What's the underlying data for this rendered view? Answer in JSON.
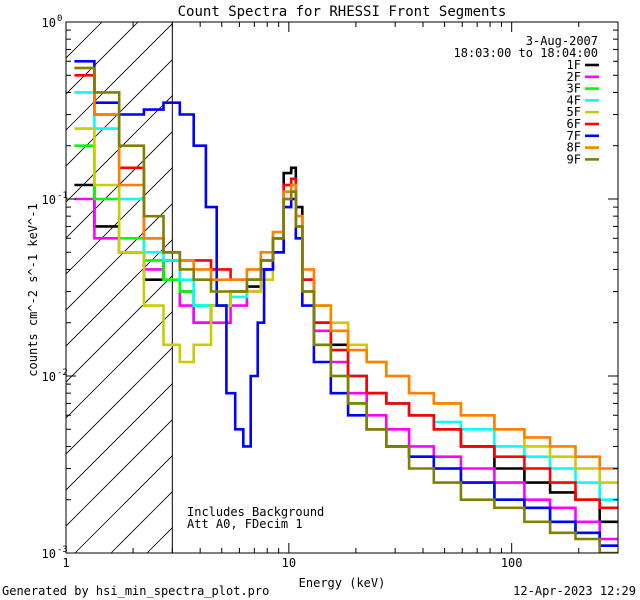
{
  "chart_data": {
    "type": "line",
    "title": "Count Spectra for RHESSI Front Segments",
    "xlabel": "Energy (keV)",
    "ylabel": "counts cm^-2 s^-1 keV^-1",
    "xscale": "log",
    "yscale": "log",
    "xlim": [
      1,
      300
    ],
    "ylim": [
      0.001,
      1
    ],
    "x_major_ticks": [
      {
        "value": 1,
        "label": "1"
      },
      {
        "value": 10,
        "label": "10"
      },
      {
        "value": 100,
        "label": "100"
      }
    ],
    "y_major_ticks": [
      {
        "value": 0.001,
        "base": "10",
        "exp": "-3"
      },
      {
        "value": 0.01,
        "base": "10",
        "exp": "-2"
      },
      {
        "value": 0.1,
        "base": "10",
        "exp": "-1"
      },
      {
        "value": 1,
        "base": "10",
        "exp": "0"
      }
    ],
    "date": "3-Aug-2007",
    "time_range": "18:03:00 to 18:04:00",
    "annotations": [
      "Includes Background",
      "Att A0, FDecim 1"
    ],
    "shaded_region": {
      "from": 1,
      "to": 3,
      "pattern": "diagonal-hatch"
    },
    "marker_line_x": 3,
    "series": [
      {
        "name": "1F",
        "color": "#000000",
        "x": [
          1.2,
          1.5,
          2.0,
          2.5,
          3.0,
          3.5,
          4.0,
          5.0,
          6.0,
          7.0,
          8.0,
          9.0,
          10.0,
          10.5,
          11.0,
          12.0,
          14.0,
          17.0,
          20.0,
          25.0,
          30.0,
          40.0,
          50.0,
          70.0,
          100.0,
          130.0,
          170.0,
          220.0,
          280.0
        ],
        "y": [
          0.12,
          0.07,
          0.05,
          0.035,
          0.045,
          0.03,
          0.02,
          0.025,
          0.03,
          0.032,
          0.04,
          0.06,
          0.14,
          0.15,
          0.09,
          0.035,
          0.02,
          0.015,
          0.01,
          0.008,
          0.007,
          0.006,
          0.005,
          0.004,
          0.003,
          0.0025,
          0.0022,
          0.002,
          0.0015
        ]
      },
      {
        "name": "2F",
        "color": "#ff00ff",
        "x": [
          1.2,
          1.5,
          2.0,
          2.5,
          3.0,
          3.5,
          4.0,
          5.0,
          6.0,
          7.0,
          8.0,
          9.0,
          10.0,
          10.5,
          11.0,
          12.0,
          14.0,
          17.0,
          20.0,
          25.0,
          30.0,
          40.0,
          50.0,
          70.0,
          100.0,
          130.0,
          170.0,
          220.0,
          280.0
        ],
        "y": [
          0.1,
          0.06,
          0.05,
          0.04,
          0.045,
          0.025,
          0.02,
          0.02,
          0.025,
          0.03,
          0.04,
          0.05,
          0.1,
          0.11,
          0.07,
          0.03,
          0.018,
          0.012,
          0.008,
          0.006,
          0.005,
          0.004,
          0.0035,
          0.003,
          0.0025,
          0.002,
          0.0018,
          0.0015,
          0.0012
        ]
      },
      {
        "name": "3F",
        "color": "#00ff00",
        "x": [
          1.2,
          1.5,
          2.0,
          2.5,
          3.0,
          3.5,
          4.0,
          5.0,
          6.0,
          7.0,
          8.0,
          9.0,
          10.0,
          10.5,
          11.0,
          12.0,
          14.0,
          17.0,
          20.0,
          25.0,
          30.0,
          40.0,
          50.0,
          70.0,
          100.0,
          130.0,
          170.0,
          220.0,
          280.0
        ],
        "y": [
          0.2,
          0.1,
          0.06,
          0.045,
          0.035,
          0.03,
          0.025,
          0.025,
          0.03,
          0.035,
          0.045,
          0.06,
          0.11,
          0.12,
          0.07,
          0.03,
          0.015,
          0.01,
          0.007,
          0.005,
          0.004,
          0.0035,
          0.003,
          0.0025,
          0.002,
          0.0018,
          0.0015,
          0.0013,
          0.0011
        ]
      },
      {
        "name": "4F",
        "color": "#00ffff",
        "x": [
          1.2,
          1.5,
          2.0,
          2.5,
          3.0,
          3.5,
          4.0,
          5.0,
          6.0,
          7.0,
          8.0,
          9.0,
          10.0,
          10.5,
          11.0,
          12.0,
          14.0,
          17.0,
          20.0,
          25.0,
          30.0,
          40.0,
          50.0,
          70.0,
          100.0,
          130.0,
          170.0,
          220.0,
          280.0
        ],
        "y": [
          0.4,
          0.25,
          0.1,
          0.05,
          0.045,
          0.035,
          0.025,
          0.025,
          0.028,
          0.035,
          0.045,
          0.06,
          0.12,
          0.13,
          0.08,
          0.035,
          0.02,
          0.014,
          0.01,
          0.008,
          0.007,
          0.006,
          0.0055,
          0.005,
          0.004,
          0.0035,
          0.003,
          0.0025,
          0.002
        ]
      },
      {
        "name": "5F",
        "color": "#cccc00",
        "x": [
          1.2,
          1.5,
          2.0,
          2.5,
          3.0,
          3.5,
          4.0,
          5.0,
          6.0,
          7.0,
          8.0,
          9.0,
          10.0,
          10.5,
          11.0,
          12.0,
          14.0,
          17.0,
          20.0,
          25.0,
          30.0,
          40.0,
          50.0,
          70.0,
          100.0,
          130.0,
          170.0,
          220.0,
          280.0
        ],
        "y": [
          0.25,
          0.12,
          0.05,
          0.025,
          0.015,
          0.012,
          0.015,
          0.025,
          0.03,
          0.03,
          0.035,
          0.05,
          0.09,
          0.1,
          0.06,
          0.035,
          0.025,
          0.02,
          0.015,
          0.012,
          0.01,
          0.008,
          0.007,
          0.006,
          0.005,
          0.004,
          0.0035,
          0.003,
          0.0025
        ]
      },
      {
        "name": "6F",
        "color": "#ff0000",
        "x": [
          1.2,
          1.5,
          2.0,
          2.5,
          3.0,
          3.5,
          4.0,
          5.0,
          6.0,
          7.0,
          8.0,
          9.0,
          10.0,
          10.5,
          11.0,
          12.0,
          14.0,
          17.0,
          20.0,
          25.0,
          30.0,
          40.0,
          50.0,
          70.0,
          100.0,
          130.0,
          170.0,
          220.0,
          280.0
        ],
        "y": [
          0.5,
          0.3,
          0.15,
          0.06,
          0.05,
          0.045,
          0.045,
          0.04,
          0.035,
          0.035,
          0.045,
          0.06,
          0.12,
          0.13,
          0.08,
          0.035,
          0.02,
          0.014,
          0.01,
          0.008,
          0.007,
          0.006,
          0.005,
          0.004,
          0.0035,
          0.003,
          0.0025,
          0.002,
          0.0018
        ]
      },
      {
        "name": "7F",
        "color": "#0000ff",
        "x": [
          1.2,
          1.5,
          2.0,
          2.5,
          3.0,
          3.5,
          4.0,
          4.5,
          5.0,
          5.5,
          6.0,
          6.5,
          7.0,
          7.5,
          8.0,
          9.0,
          10.0,
          10.5,
          11.0,
          12.0,
          14.0,
          17.0,
          20.0,
          25.0,
          30.0,
          40.0,
          50.0,
          70.0,
          100.0,
          130.0,
          170.0,
          220.0,
          280.0
        ],
        "y": [
          0.6,
          0.35,
          0.3,
          0.32,
          0.35,
          0.3,
          0.2,
          0.09,
          0.025,
          0.008,
          0.005,
          0.004,
          0.01,
          0.02,
          0.04,
          0.05,
          0.09,
          0.1,
          0.06,
          0.025,
          0.012,
          0.008,
          0.006,
          0.005,
          0.004,
          0.0035,
          0.003,
          0.0025,
          0.002,
          0.0018,
          0.0015,
          0.0013,
          0.0011
        ]
      },
      {
        "name": "8F",
        "color": "#ff8000",
        "x": [
          1.2,
          1.5,
          2.0,
          2.5,
          3.0,
          3.5,
          4.0,
          5.0,
          6.0,
          7.0,
          8.0,
          9.0,
          10.0,
          10.5,
          11.0,
          12.0,
          14.0,
          17.0,
          20.0,
          25.0,
          30.0,
          40.0,
          50.0,
          70.0,
          100.0,
          130.0,
          170.0,
          220.0,
          280.0
        ],
        "y": [
          0.55,
          0.3,
          0.12,
          0.06,
          0.05,
          0.045,
          0.04,
          0.035,
          0.035,
          0.04,
          0.05,
          0.065,
          0.11,
          0.12,
          0.08,
          0.04,
          0.025,
          0.018,
          0.014,
          0.012,
          0.01,
          0.008,
          0.007,
          0.006,
          0.005,
          0.0045,
          0.004,
          0.0035,
          0.003
        ]
      },
      {
        "name": "9F",
        "color": "#808000",
        "x": [
          1.2,
          1.5,
          2.0,
          2.5,
          3.0,
          3.5,
          4.0,
          5.0,
          6.0,
          7.0,
          8.0,
          9.0,
          10.0,
          10.5,
          11.0,
          12.0,
          14.0,
          17.0,
          20.0,
          25.0,
          30.0,
          40.0,
          50.0,
          70.0,
          100.0,
          130.0,
          170.0,
          220.0,
          280.0
        ],
        "y": [
          0.55,
          0.4,
          0.2,
          0.08,
          0.05,
          0.04,
          0.035,
          0.03,
          0.03,
          0.035,
          0.045,
          0.06,
          0.1,
          0.11,
          0.07,
          0.03,
          0.015,
          0.01,
          0.007,
          0.005,
          0.004,
          0.003,
          0.0025,
          0.002,
          0.0018,
          0.0015,
          0.0013,
          0.0012,
          0.001
        ]
      }
    ]
  },
  "footer": {
    "generated_by": "Generated by hsi_min_spectra_plot.pro",
    "timestamp": "12-Apr-2023 12:29"
  }
}
